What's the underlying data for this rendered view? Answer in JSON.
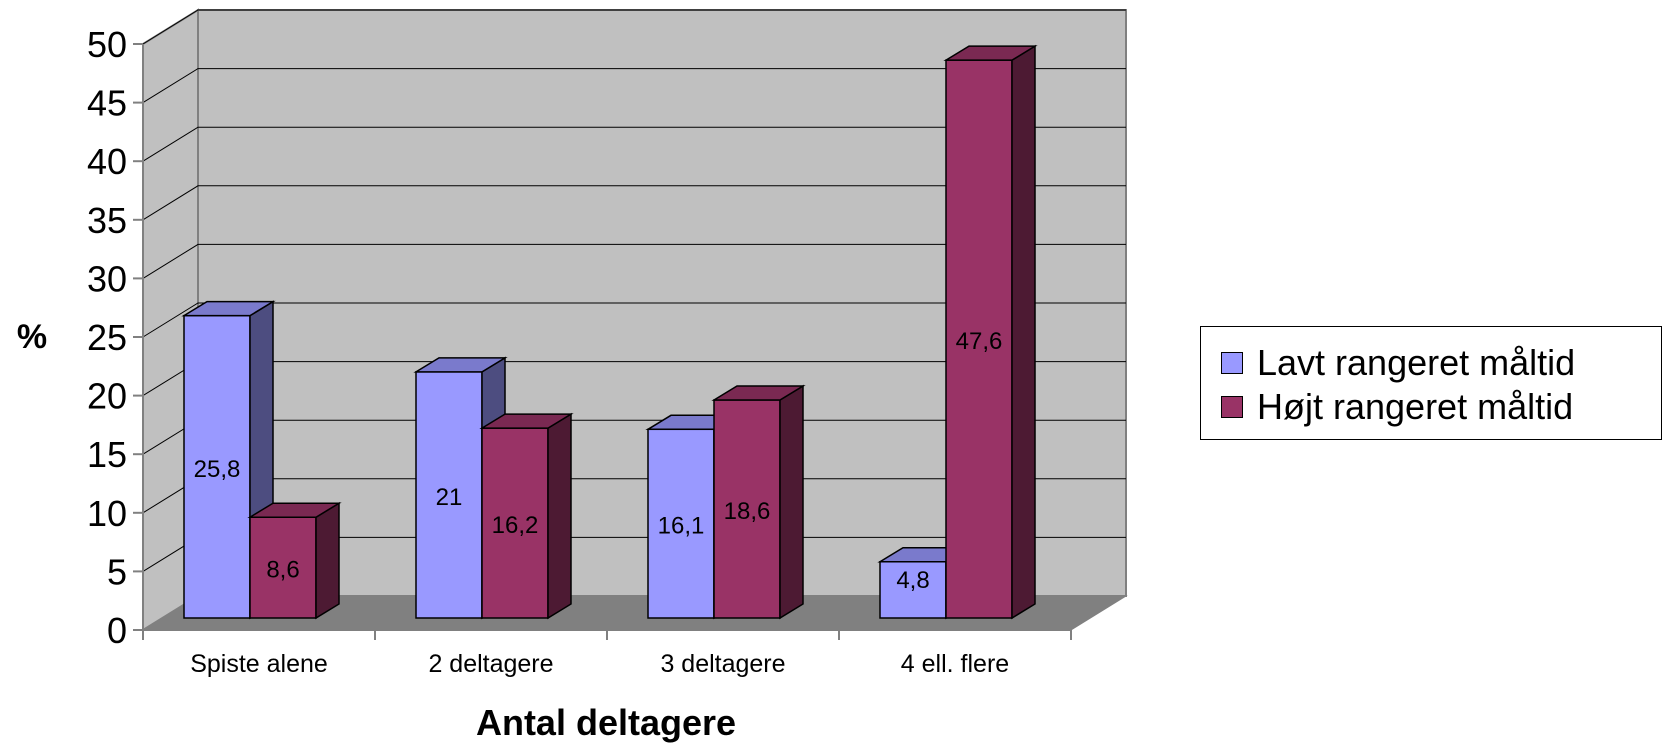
{
  "chart_data": {
    "type": "bar",
    "title": "",
    "xlabel": "Antal deltagere",
    "ylabel": "%",
    "ylim": [
      0,
      50
    ],
    "yticks": [
      "0",
      "5",
      "10",
      "15",
      "20",
      "25",
      "30",
      "35",
      "40",
      "45",
      "50"
    ],
    "categories": [
      "Spiste alene",
      "2 deltagere",
      "3 deltagere",
      "4 ell. flere"
    ],
    "series": [
      {
        "name": "Lavt rangeret måltid",
        "values": [
          25.8,
          21,
          16.1,
          4.8
        ],
        "labels": [
          "25,8",
          "21",
          "16,1",
          "4,8"
        ],
        "color": "#9999ff",
        "side_color": "#4d4d80",
        "top_color": "#7a7acc"
      },
      {
        "name": "Højt rangeret måltid",
        "values": [
          8.6,
          16.2,
          18.6,
          47.6
        ],
        "labels": [
          "8,6",
          "16,2",
          "18,6",
          "47,6"
        ],
        "color": "#993366",
        "side_color": "#4d1a33",
        "top_color": "#7a2952"
      }
    ],
    "legend_position": "right",
    "grid": true,
    "style": "3d-clustered-column",
    "colors": {
      "back_wall": "#c0c0c0",
      "floor": "#808080",
      "gridline": "#000000"
    }
  }
}
